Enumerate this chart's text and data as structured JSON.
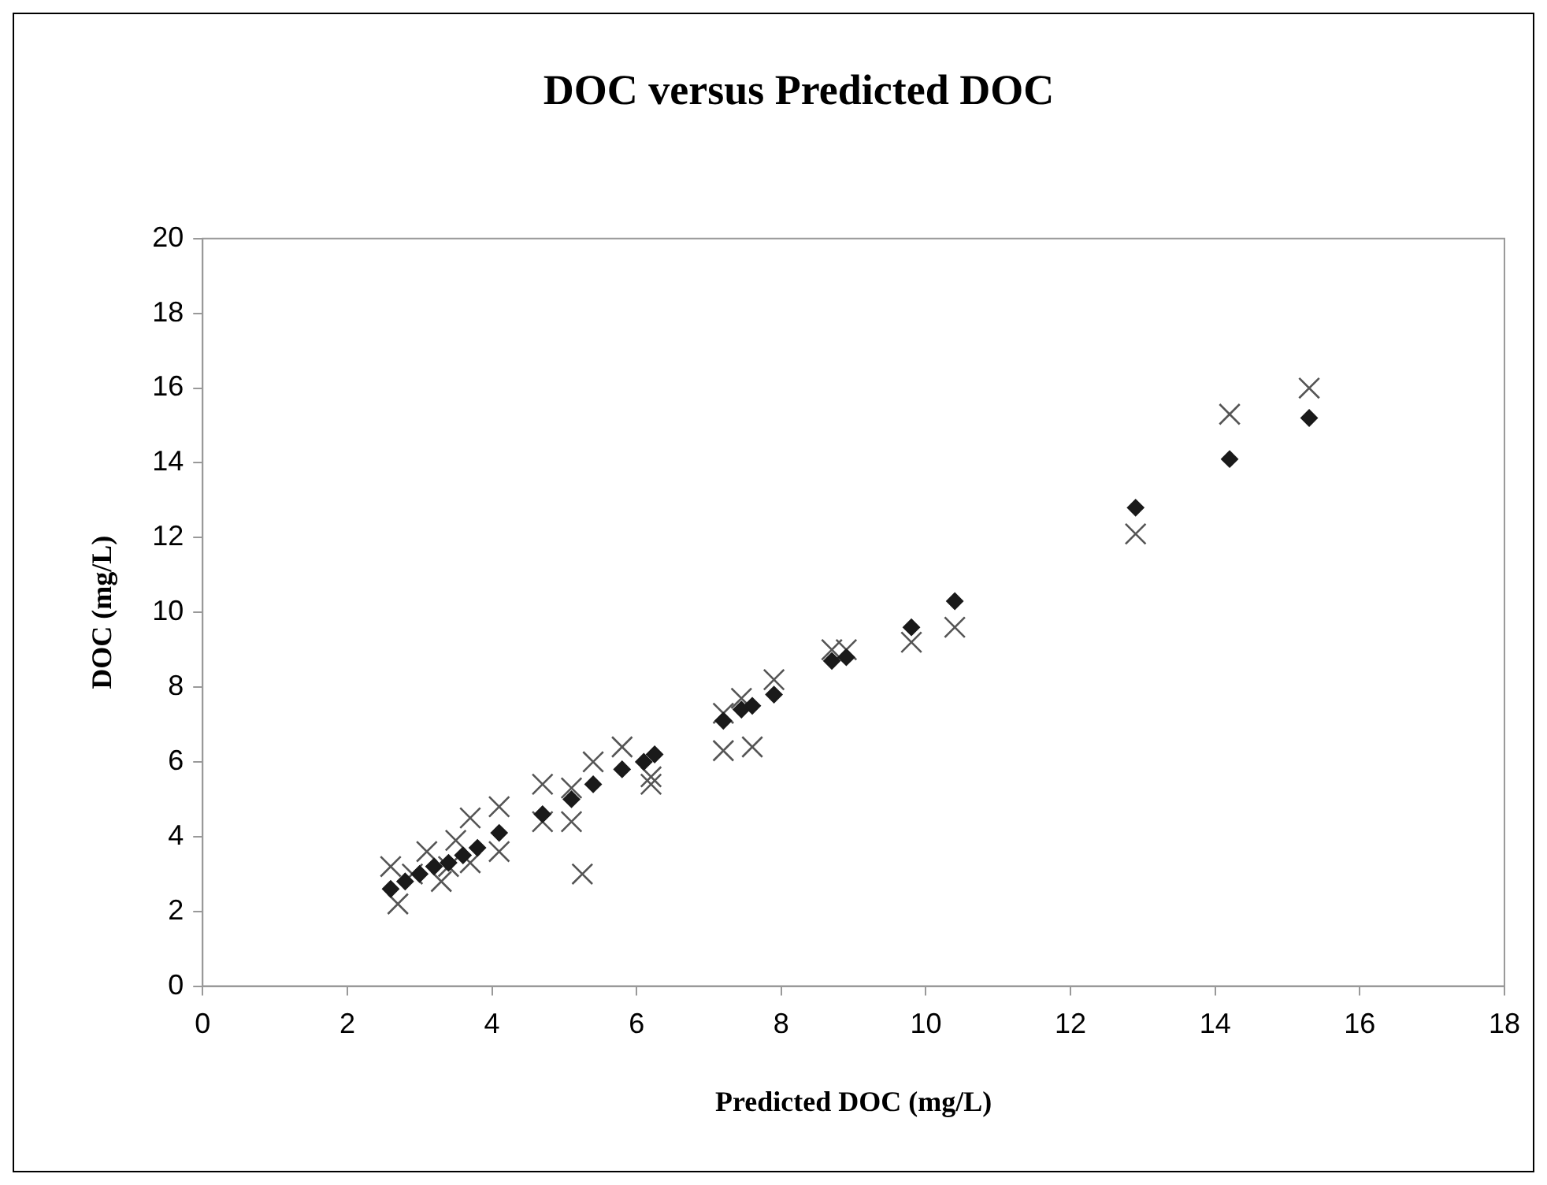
{
  "chart_data": {
    "type": "scatter",
    "title": "DOC versus Predicted DOC",
    "xlabel": "Predicted DOC (mg/L)",
    "ylabel": "DOC (mg/L)",
    "xlim": [
      0,
      18
    ],
    "xticks": [
      0,
      2,
      4,
      6,
      8,
      10,
      12,
      14,
      16,
      18
    ],
    "ylim": [
      0,
      20
    ],
    "yticks": [
      0,
      2,
      4,
      6,
      8,
      10,
      12,
      14,
      16,
      18,
      20
    ],
    "grid": false,
    "legend": false,
    "series": [
      {
        "color": "#1a1a1a",
        "marker": "diamond",
        "x": [
          2.6,
          2.8,
          3.0,
          3.2,
          3.4,
          3.6,
          3.8,
          4.1,
          4.7,
          5.1,
          5.4,
          5.8,
          6.1,
          6.25,
          7.2,
          7.45,
          7.6,
          7.9,
          8.7,
          8.9,
          9.8,
          10.4,
          12.9,
          14.2,
          15.3
        ],
        "values": [
          2.6,
          2.8,
          3.0,
          3.2,
          3.3,
          3.5,
          3.7,
          4.1,
          4.6,
          5.0,
          5.4,
          5.8,
          6.0,
          6.2,
          7.1,
          7.4,
          7.5,
          7.8,
          8.7,
          8.8,
          9.6,
          10.3,
          12.8,
          14.1,
          15.2
        ]
      },
      {
        "color": "#555555",
        "marker": "cross",
        "x": [
          2.6,
          2.7,
          2.9,
          3.1,
          3.3,
          3.4,
          3.5,
          3.7,
          3.7,
          4.1,
          4.1,
          4.7,
          4.7,
          5.1,
          5.1,
          5.25,
          5.4,
          5.8,
          6.2,
          6.2,
          7.2,
          7.2,
          7.45,
          7.6,
          7.9,
          8.7,
          8.9,
          9.8,
          10.4,
          12.9,
          14.2,
          15.3
        ],
        "values": [
          3.2,
          2.2,
          3.0,
          3.6,
          2.8,
          3.2,
          3.9,
          4.5,
          3.3,
          3.6,
          4.8,
          5.4,
          4.4,
          4.4,
          5.3,
          3.0,
          6.0,
          6.4,
          5.4,
          5.6,
          6.3,
          7.3,
          7.7,
          6.4,
          8.2,
          9.0,
          9.0,
          9.2,
          9.6,
          12.1,
          15.3,
          16.0
        ]
      }
    ]
  }
}
